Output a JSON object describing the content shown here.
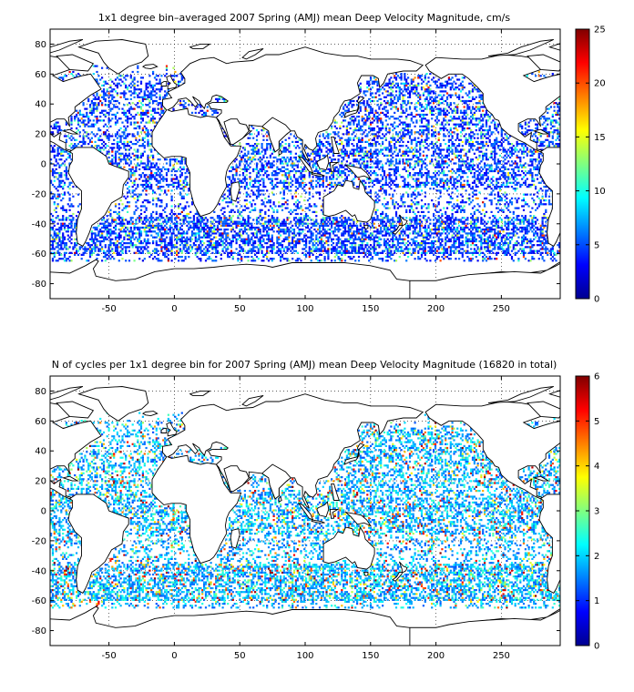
{
  "maps": [
    {
      "title": "1x1 degree bin–averaged 2007 Spring (AMJ) mean Deep Velocity Magnitude, cm/s",
      "x_ticks": [
        "-50",
        "0",
        "50",
        "100",
        "150",
        "200",
        "250"
      ],
      "y_ticks": [
        "80",
        "60",
        "40",
        "20",
        "0",
        "-20",
        "-40",
        "-60",
        "-80"
      ],
      "colorbar_ticks": [
        "25",
        "20",
        "15",
        "10",
        "5",
        "0"
      ],
      "colorbar_range": [
        0,
        25
      ],
      "lon_range": [
        -95,
        295
      ],
      "lat_range": [
        -90,
        90
      ]
    },
    {
      "title": "N of cycles per 1x1 degree bin for 2007 Spring (AMJ) mean Deep Velocity Magnitude (16820 in total)",
      "x_ticks": [
        "-50",
        "0",
        "50",
        "100",
        "150",
        "200",
        "250"
      ],
      "y_ticks": [
        "80",
        "60",
        "40",
        "20",
        "0",
        "-20",
        "-40",
        "-60",
        "-80"
      ],
      "colorbar_ticks": [
        "6",
        "5",
        "4",
        "3",
        "2",
        "1",
        "0"
      ],
      "colorbar_range": [
        0,
        6
      ],
      "lon_range": [
        -95,
        295
      ],
      "lat_range": [
        -90,
        90
      ]
    }
  ],
  "colormap": "jet",
  "grid": "dotted"
}
